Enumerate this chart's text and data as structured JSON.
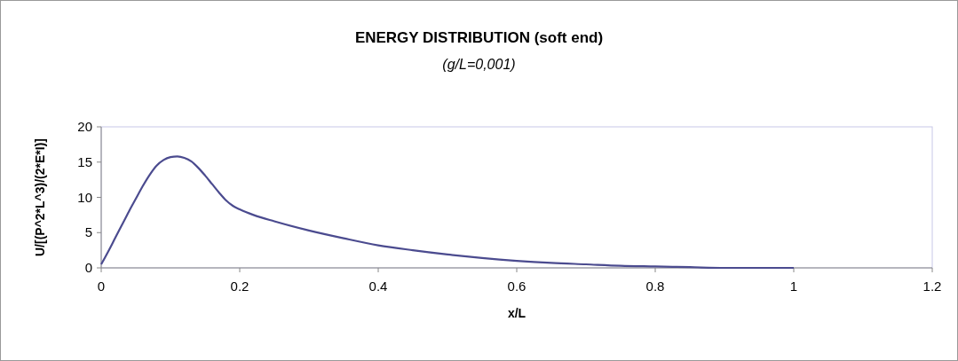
{
  "chart_data": {
    "type": "line",
    "title": "ENERGY DISTRIBUTION (soft end)",
    "subtitle": "(g/L=0,001)",
    "xlabel": "x/L",
    "ylabel": "U/[(P^2*L^3)/(2*E*I)]",
    "series": [
      {
        "color": "#4b4b8f",
        "x": [
          0,
          0.01,
          0.02,
          0.03,
          0.04,
          0.05,
          0.06,
          0.07,
          0.08,
          0.09,
          0.1,
          0.11,
          0.12,
          0.13,
          0.14,
          0.15,
          0.16,
          0.17,
          0.18,
          0.19,
          0.2,
          0.22,
          0.25,
          0.3,
          0.35,
          0.4,
          0.45,
          0.5,
          0.55,
          0.6,
          0.65,
          0.7,
          0.75,
          0.8,
          0.85,
          0.9,
          0.95,
          1
        ],
        "values": [
          0.5,
          2.3,
          4.2,
          6.1,
          8.0,
          9.8,
          11.6,
          13.2,
          14.5,
          15.3,
          15.7,
          15.8,
          15.6,
          15.1,
          14.2,
          13.1,
          11.9,
          10.7,
          9.6,
          8.8,
          8.3,
          7.5,
          6.6,
          5.3,
          4.2,
          3.2,
          2.5,
          1.9,
          1.4,
          1.0,
          0.7,
          0.5,
          0.3,
          0.2,
          0.1,
          0,
          0,
          0
        ]
      }
    ],
    "xlim": [
      0,
      1.2
    ],
    "xticks": [
      0,
      0.2,
      0.4,
      0.6,
      0.8,
      1,
      1.2
    ],
    "ylim": [
      0,
      20
    ],
    "yticks": [
      0,
      5,
      10,
      15,
      20
    ],
    "grid": false
  }
}
